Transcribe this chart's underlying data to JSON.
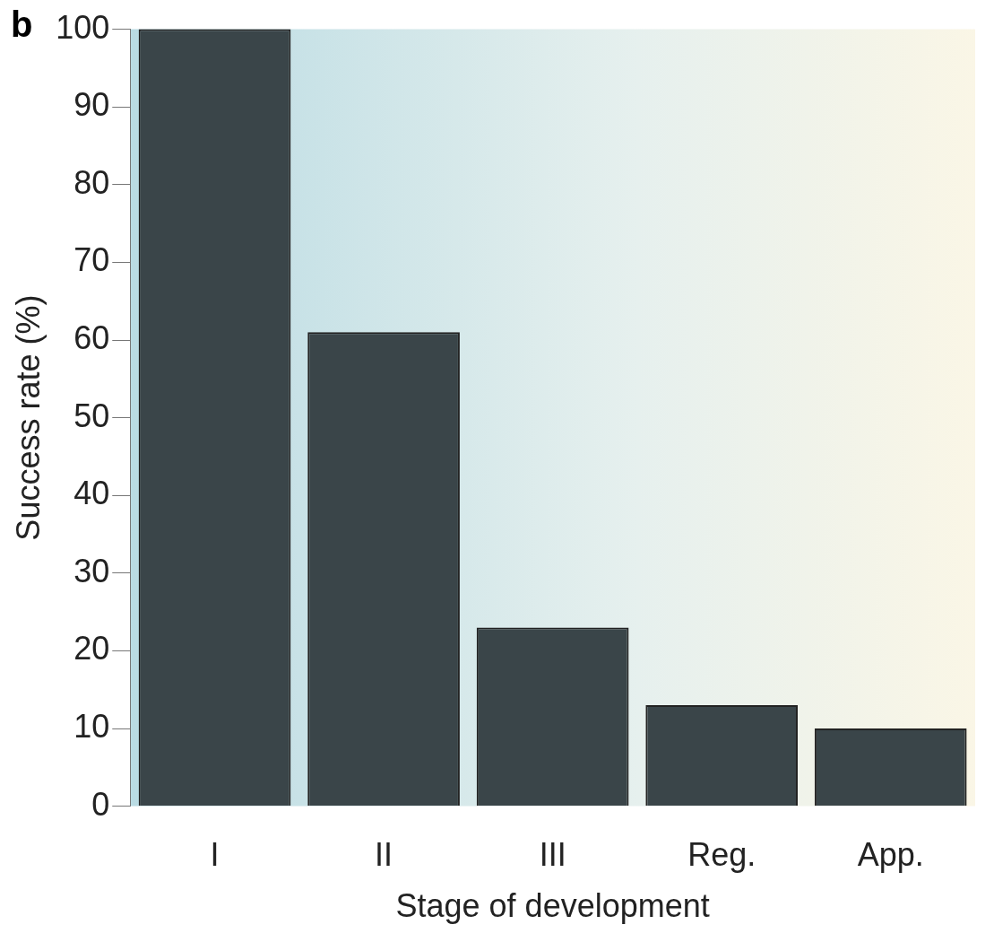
{
  "chart_data": {
    "type": "bar",
    "xlabel": "Stage of development",
    "ylabel": "Success rate (%)",
    "categories": [
      "I",
      "II",
      "III",
      "Reg.",
      "App."
    ],
    "values": [
      100,
      61,
      23,
      13,
      10
    ],
    "color": "#3a4549",
    "ylim": [
      0,
      100
    ],
    "yticks": [
      0,
      10,
      20,
      30,
      40,
      50,
      60,
      70,
      80,
      90,
      100
    ],
    "grid": false,
    "legend": false,
    "annotations": [
      "b"
    ]
  }
}
